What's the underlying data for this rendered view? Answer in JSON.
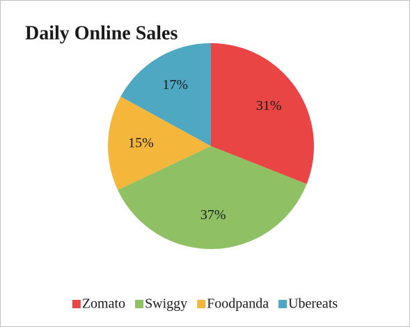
{
  "chart_data": {
    "type": "pie",
    "title": "Daily Online Sales",
    "categories": [
      "Zomato",
      "Swiggy",
      "Foodpanda",
      "Ubereats"
    ],
    "values": [
      31,
      37,
      15,
      17
    ],
    "value_labels": [
      "31%",
      "37%",
      "15%",
      "17%"
    ],
    "colors": [
      "#e94545",
      "#8fc164",
      "#f4b73b",
      "#4fa8c2"
    ],
    "legend": "bottom"
  }
}
